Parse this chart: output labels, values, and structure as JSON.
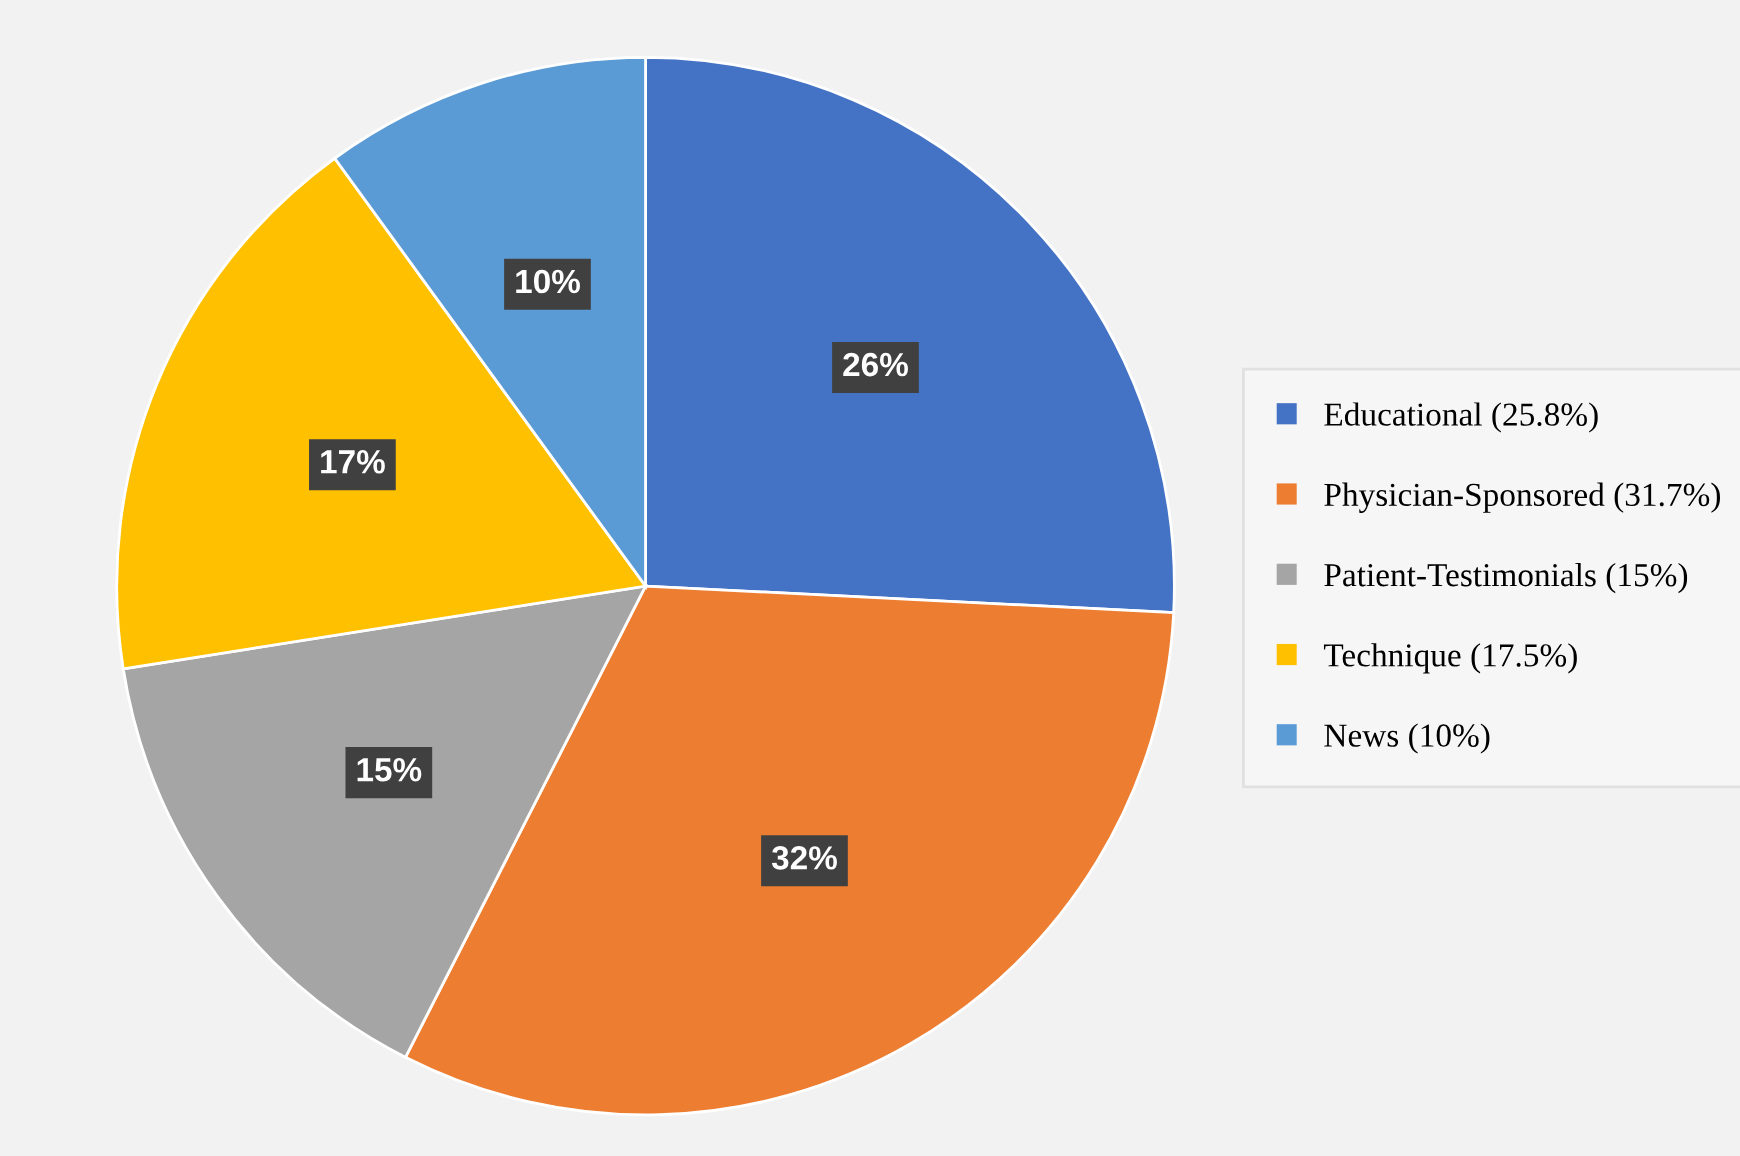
{
  "chart_data": {
    "type": "pie",
    "categories": [
      "Educational (25.8%)",
      "Physician-Sponsored (31.7%)",
      "Patient-Testimonials (15%)",
      "Technique (17.5%)",
      "News (10%)"
    ],
    "values": [
      25.8,
      31.7,
      15,
      17.5,
      10
    ],
    "colors": [
      "#4472c4",
      "#ed7d31",
      "#a5a5a5",
      "#ffc000",
      "#5b9bd5"
    ],
    "value_labels": [
      "26%",
      "32%",
      "15%",
      "17%",
      "10%"
    ],
    "legend": "right"
  }
}
